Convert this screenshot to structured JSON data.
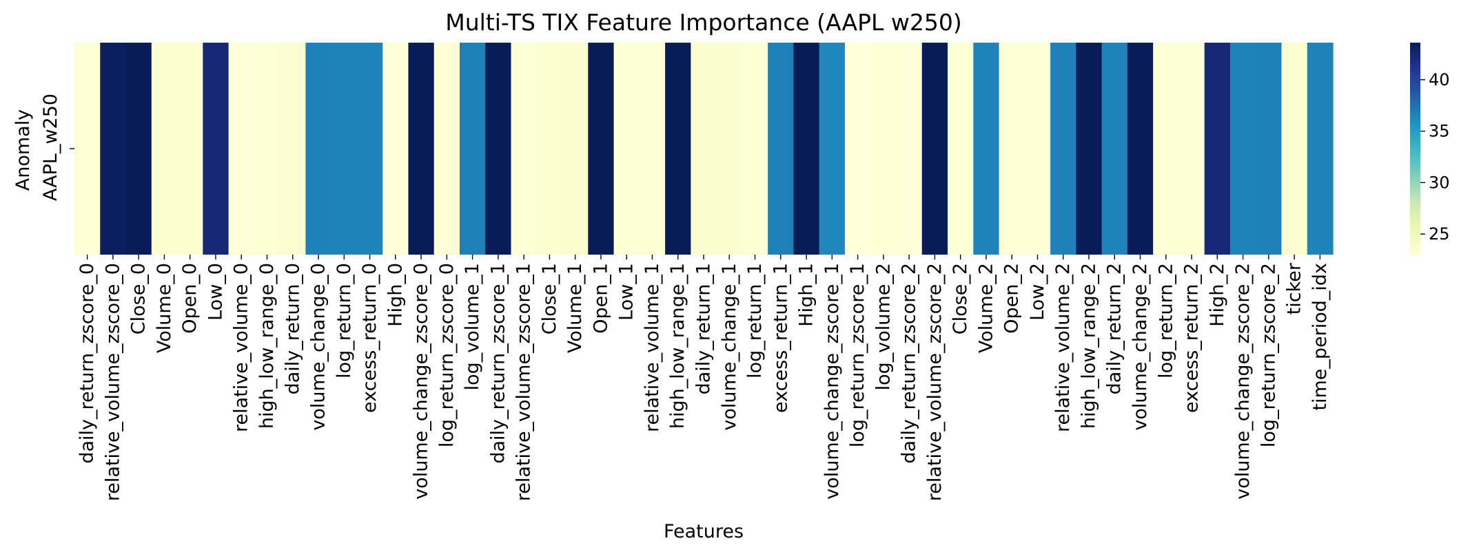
{
  "chart_data": {
    "type": "heatmap",
    "title": "Multi-TS TIX Feature Importance (AAPL w250)",
    "xlabel": "Features",
    "ylabel": "Anomaly",
    "row_labels": [
      "AAPL_w250"
    ],
    "categories": [
      "daily_return_zscore_0",
      "relative_volume_zscore_0",
      "Close_0",
      "Volume_0",
      "Open_0",
      "Low_0",
      "relative_volume_0",
      "high_low_range_0",
      "daily_return_0",
      "volume_change_0",
      "log_return_0",
      "excess_return_0",
      "High_0",
      "volume_change_zscore_0",
      "log_return_zscore_0",
      "log_volume_1",
      "daily_return_zscore_1",
      "relative_volume_zscore_1",
      "Close_1",
      "Volume_1",
      "Open_1",
      "Low_1",
      "relative_volume_1",
      "high_low_range_1",
      "daily_return_1",
      "volume_change_1",
      "log_return_1",
      "excess_return_1",
      "High_1",
      "volume_change_zscore_1",
      "log_return_zscore_1",
      "log_volume_2",
      "daily_return_zscore_2",
      "relative_volume_zscore_2",
      "Close_2",
      "Volume_2",
      "Open_2",
      "Low_2",
      "relative_volume_2",
      "high_low_range_2",
      "daily_return_2",
      "volume_change_2",
      "log_return_2",
      "excess_return_2",
      "High_2",
      "volume_change_zscore_2",
      "log_return_zscore_2",
      "ticker",
      "time_period_idx"
    ],
    "values": [
      23.3,
      43.4,
      43.6,
      23.5,
      23.5,
      42.3,
      23.2,
      23.4,
      23.5,
      36.7,
      36.6,
      36.6,
      23.2,
      43.6,
      23.3,
      36.8,
      43.6,
      23.4,
      23.5,
      23.6,
      43.6,
      23.4,
      23.4,
      43.6,
      23.7,
      23.6,
      23.4,
      36.8,
      43.6,
      36.4,
      23.0,
      23.3,
      23.2,
      43.6,
      23.4,
      36.6,
      23.3,
      23.3,
      36.7,
      43.6,
      36.6,
      43.6,
      23.4,
      23.4,
      42.3,
      36.6,
      36.7,
      23.5,
      36.6
    ],
    "colorscale": "YlGnBu",
    "vmin": 23.0,
    "vmax": 43.6,
    "colorbar_ticks": [
      25,
      30,
      35,
      40
    ],
    "grid": false
  }
}
